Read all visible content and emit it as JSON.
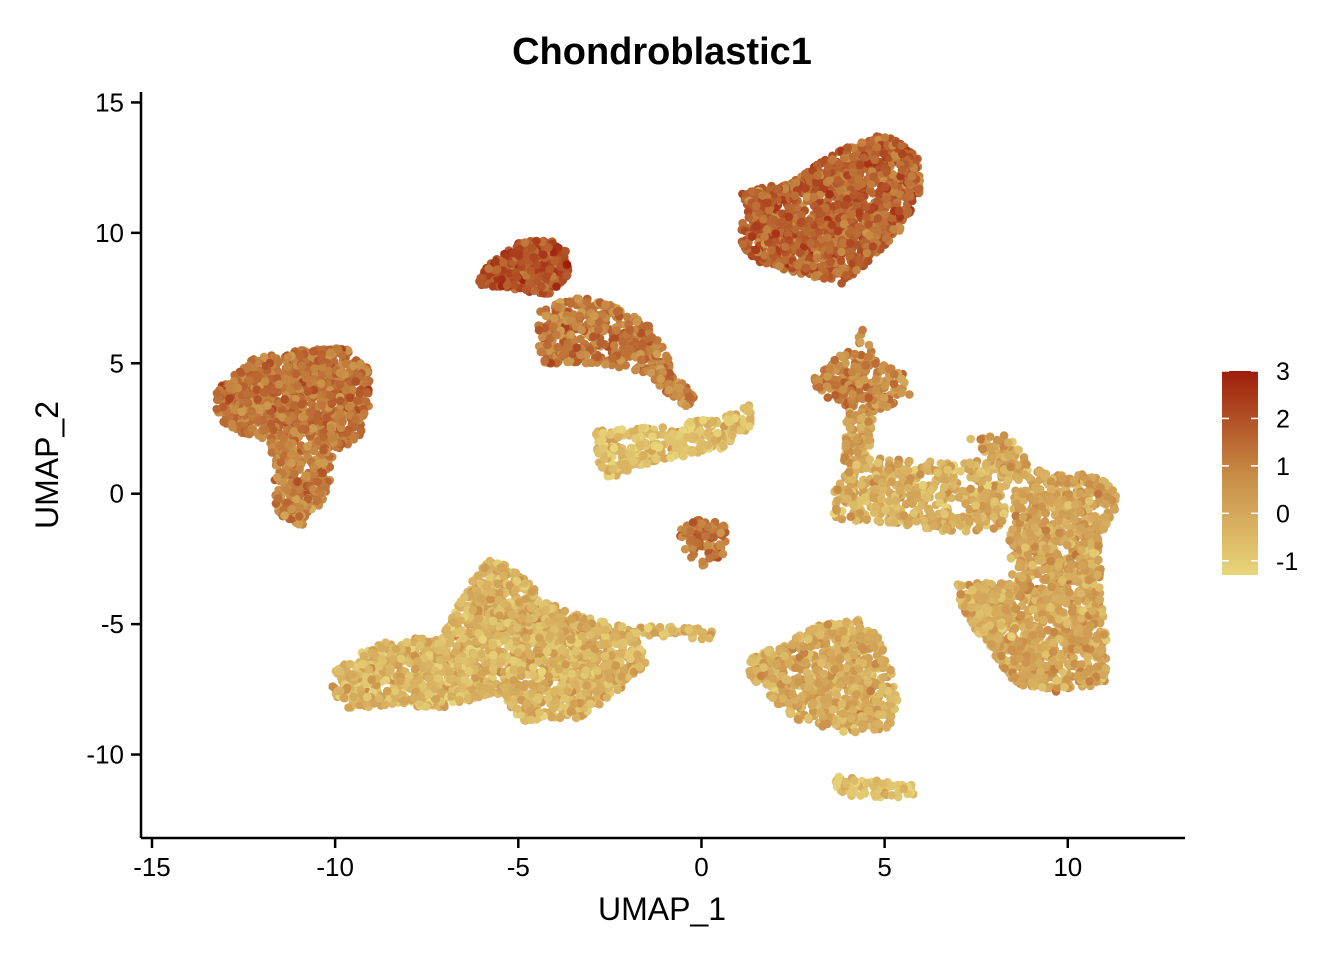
{
  "chart_data": {
    "type": "scatter",
    "title": "Chondroblastic1",
    "xlabel": "UMAP_1",
    "ylabel": "UMAP_2",
    "xlim": [
      -15.3,
      13.2
    ],
    "ylim": [
      -13.2,
      15.4
    ],
    "xticks": [
      -15,
      -10,
      -5,
      0,
      5,
      10
    ],
    "xtick_labels": [
      "-15",
      "-10",
      "-5",
      "0",
      "5",
      "10"
    ],
    "yticks": [
      -10,
      -5,
      0,
      5,
      10,
      15
    ],
    "ytick_labels": [
      "-10",
      "-5",
      "0",
      "5",
      "10",
      "15"
    ],
    "grid": false,
    "legend": {
      "placement": "right",
      "min": -1.3,
      "max": 3.0,
      "ticks": [
        3,
        2,
        1,
        0,
        -1
      ],
      "tick_labels": [
        "3",
        "2",
        "1",
        "0",
        "-1"
      ],
      "low_color": "#E8D57A",
      "mid_color": "#C78A45",
      "high_color": "#9E1E0A"
    },
    "clusters": [
      {
        "name": "top-right cluster",
        "value": 1.6,
        "n": 1300,
        "polygon": [
          [
            1.0,
            11.5
          ],
          [
            2.5,
            12.0
          ],
          [
            3.8,
            13.2
          ],
          [
            5.0,
            13.8
          ],
          [
            5.9,
            13.0
          ],
          [
            6.0,
            11.7
          ],
          [
            5.5,
            10.2
          ],
          [
            4.5,
            8.8
          ],
          [
            3.8,
            8.0
          ],
          [
            2.5,
            8.5
          ],
          [
            1.3,
            9.0
          ],
          [
            1.0,
            10.0
          ],
          [
            1.3,
            11.0
          ]
        ]
      },
      {
        "name": "left cluster body",
        "value": 1.3,
        "n": 1000,
        "polygon": [
          [
            -13.3,
            3.9
          ],
          [
            -12.2,
            5.2
          ],
          [
            -11.0,
            5.5
          ],
          [
            -9.7,
            5.6
          ],
          [
            -9.1,
            4.8
          ],
          [
            -9.0,
            3.5
          ],
          [
            -9.4,
            2.0
          ],
          [
            -10.0,
            1.7
          ],
          [
            -11.5,
            2.0
          ],
          [
            -12.6,
            2.3
          ],
          [
            -13.2,
            2.9
          ]
        ]
      },
      {
        "name": "left cluster tail",
        "value": 1.0,
        "n": 260,
        "polygon": [
          [
            -11.8,
            2.0
          ],
          [
            -10.0,
            1.8
          ],
          [
            -10.2,
            0.0
          ],
          [
            -10.9,
            -1.3
          ],
          [
            -11.6,
            -0.8
          ],
          [
            -11.7,
            0.8
          ]
        ]
      },
      {
        "name": "upper-middle cluster top",
        "value": 1.9,
        "n": 380,
        "polygon": [
          [
            -6.1,
            8.2
          ],
          [
            -5.8,
            8.8
          ],
          [
            -5.0,
            9.6
          ],
          [
            -4.2,
            9.8
          ],
          [
            -3.7,
            9.3
          ],
          [
            -3.6,
            8.3
          ],
          [
            -4.2,
            7.6
          ],
          [
            -5.4,
            7.9
          ],
          [
            -6.0,
            8.0
          ]
        ]
      },
      {
        "name": "upper-middle cluster lower",
        "value": 1.2,
        "n": 400,
        "polygon": [
          [
            -4.4,
            7.0
          ],
          [
            -3.5,
            7.6
          ],
          [
            -2.5,
            7.3
          ],
          [
            -1.5,
            6.6
          ],
          [
            -1.0,
            5.6
          ],
          [
            -0.8,
            4.8
          ],
          [
            -1.6,
            4.6
          ],
          [
            -2.8,
            5.0
          ],
          [
            -4.4,
            5.0
          ],
          [
            -4.5,
            6.0
          ]
        ]
      },
      {
        "name": "upper-middle arm",
        "value": 0.9,
        "n": 90,
        "polygon": [
          [
            -1.2,
            5.0
          ],
          [
            -0.5,
            4.2
          ],
          [
            -0.1,
            3.6
          ],
          [
            -0.4,
            3.3
          ],
          [
            -1.0,
            3.9
          ],
          [
            -1.4,
            4.6
          ]
        ]
      },
      {
        "name": "middle diagonal band",
        "value": -0.6,
        "n": 330,
        "polygon": [
          [
            -2.9,
            2.4
          ],
          [
            -0.9,
            2.6
          ],
          [
            0.6,
            3.0
          ],
          [
            1.3,
            3.4
          ],
          [
            1.4,
            2.6
          ],
          [
            0.4,
            1.6
          ],
          [
            -1.2,
            1.3
          ],
          [
            -2.6,
            0.5
          ],
          [
            -2.8,
            1.1
          ]
        ]
      },
      {
        "name": "small middle cluster",
        "value": 1.3,
        "n": 90,
        "polygon": [
          [
            -0.6,
            -1.4
          ],
          [
            -0.2,
            -1.0
          ],
          [
            0.4,
            -0.9
          ],
          [
            0.7,
            -1.3
          ],
          [
            0.6,
            -2.4
          ],
          [
            0.1,
            -2.8
          ],
          [
            -0.5,
            -2.4
          ]
        ]
      },
      {
        "name": "bottom-left cluster",
        "value": -0.3,
        "n": 1900,
        "polygon": [
          [
            -10.0,
            -6.8
          ],
          [
            -9.2,
            -6.0
          ],
          [
            -8.5,
            -5.6
          ],
          [
            -7.1,
            -5.5
          ],
          [
            -6.3,
            -3.4
          ],
          [
            -5.8,
            -2.5
          ],
          [
            -5.0,
            -2.9
          ],
          [
            -4.2,
            -4.2
          ],
          [
            -3.0,
            -4.8
          ],
          [
            -1.8,
            -5.2
          ],
          [
            -1.5,
            -6.5
          ],
          [
            -2.3,
            -7.6
          ],
          [
            -3.3,
            -8.6
          ],
          [
            -4.9,
            -8.7
          ],
          [
            -5.6,
            -7.6
          ],
          [
            -7.0,
            -8.2
          ],
          [
            -8.5,
            -8.1
          ],
          [
            -9.6,
            -8.3
          ],
          [
            -10.1,
            -7.6
          ]
        ]
      },
      {
        "name": "bottom-left tail",
        "value": -0.5,
        "n": 40,
        "polygon": [
          [
            -1.9,
            -5.0
          ],
          [
            0.3,
            -5.2
          ],
          [
            0.3,
            -5.6
          ],
          [
            -1.9,
            -5.4
          ]
        ]
      },
      {
        "name": "bottom-middle cluster",
        "value": -0.1,
        "n": 700,
        "polygon": [
          [
            1.3,
            -6.2
          ],
          [
            2.3,
            -5.8
          ],
          [
            3.0,
            -5.1
          ],
          [
            4.3,
            -4.8
          ],
          [
            4.9,
            -5.5
          ],
          [
            5.2,
            -6.9
          ],
          [
            5.4,
            -8.3
          ],
          [
            5.1,
            -9.0
          ],
          [
            4.0,
            -9.2
          ],
          [
            2.5,
            -8.6
          ],
          [
            1.8,
            -7.7
          ],
          [
            1.3,
            -7.0
          ]
        ]
      },
      {
        "name": "bottom small strip",
        "value": -0.7,
        "n": 60,
        "polygon": [
          [
            3.4,
            -10.8
          ],
          [
            4.6,
            -10.9
          ],
          [
            5.9,
            -11.2
          ],
          [
            5.8,
            -11.6
          ],
          [
            4.2,
            -11.7
          ],
          [
            3.6,
            -11.3
          ]
        ]
      },
      {
        "name": "right cluster upper stem",
        "value": 0.9,
        "n": 220,
        "polygon": [
          [
            3.0,
            4.3
          ],
          [
            3.6,
            5.2
          ],
          [
            4.1,
            5.5
          ],
          [
            4.4,
            6.4
          ],
          [
            4.8,
            5.2
          ],
          [
            5.5,
            4.6
          ],
          [
            5.7,
            3.8
          ],
          [
            5.1,
            3.3
          ],
          [
            4.3,
            3.0
          ],
          [
            3.5,
            3.6
          ]
        ]
      },
      {
        "name": "right cluster neck",
        "value": 0.3,
        "n": 110,
        "polygon": [
          [
            4.0,
            3.2
          ],
          [
            4.7,
            3.0
          ],
          [
            4.6,
            1.8
          ],
          [
            4.2,
            0.6
          ],
          [
            3.9,
            0.6
          ],
          [
            3.9,
            2.0
          ]
        ]
      },
      {
        "name": "right cluster branch",
        "value": -0.2,
        "n": 520,
        "polygon": [
          [
            3.6,
            0.3
          ],
          [
            4.4,
            1.4
          ],
          [
            5.5,
            1.3
          ],
          [
            6.7,
            1.2
          ],
          [
            7.5,
            1.3
          ],
          [
            8.6,
            1.7
          ],
          [
            8.4,
            0.3
          ],
          [
            8.2,
            -1.3
          ],
          [
            7.0,
            -1.5
          ],
          [
            5.5,
            -1.2
          ],
          [
            3.6,
            -1.0
          ]
        ]
      },
      {
        "name": "right cluster main",
        "value": 0.1,
        "n": 1400,
        "polygon": [
          [
            7.3,
            2.1
          ],
          [
            8.3,
            2.3
          ],
          [
            8.9,
            1.3
          ],
          [
            9.5,
            0.7
          ],
          [
            10.6,
            0.8
          ],
          [
            11.3,
            0.2
          ],
          [
            11.4,
            -0.6
          ],
          [
            10.9,
            -1.5
          ],
          [
            10.9,
            -3.7
          ],
          [
            11.1,
            -6.0
          ],
          [
            11.0,
            -7.3
          ],
          [
            9.7,
            -7.6
          ],
          [
            8.6,
            -7.3
          ],
          [
            8.0,
            -6.2
          ],
          [
            7.3,
            -4.3
          ],
          [
            8.5,
            -3.4
          ],
          [
            8.4,
            -1.6
          ],
          [
            8.6,
            0.5
          ],
          [
            7.8,
            1.5
          ]
        ]
      },
      {
        "name": "right cluster left lobe",
        "value": -0.1,
        "n": 200,
        "polygon": [
          [
            7.0,
            -3.4
          ],
          [
            8.5,
            -3.4
          ],
          [
            8.4,
            -4.8
          ],
          [
            8.0,
            -6.0
          ],
          [
            7.5,
            -5.3
          ],
          [
            7.0,
            -4.0
          ]
        ]
      }
    ]
  }
}
